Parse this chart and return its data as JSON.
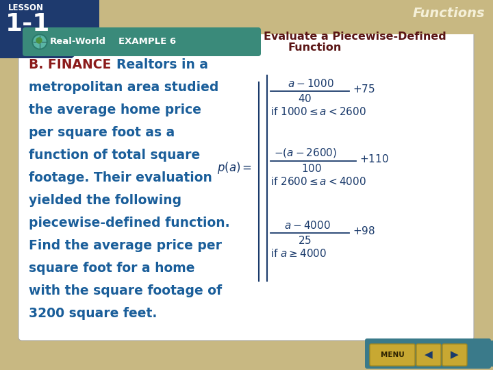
{
  "bg_outer": "#c8b882",
  "bg_inner": "#ffffff",
  "lesson_line1": "LESSON",
  "lesson_line2": "1-1",
  "functions_text": "Functions",
  "functions_color": "#f5f0d8",
  "header_teal": "#3a8a7a",
  "header_label": "Real-World",
  "header_example": "EXAMPLE 6",
  "title_line1": "Evaluate a Piecewise-Defined",
  "title_line2": "Function",
  "title_color": "#8b1a1a",
  "body_text_color": "#1a5e9a",
  "bold_prefix": "B. FINANCE",
  "bold_prefix_color": "#8b1a1a",
  "math_color": "#1a3a6b",
  "nav_teal": "#3a7a8a",
  "nav_gold": "#c8a832"
}
